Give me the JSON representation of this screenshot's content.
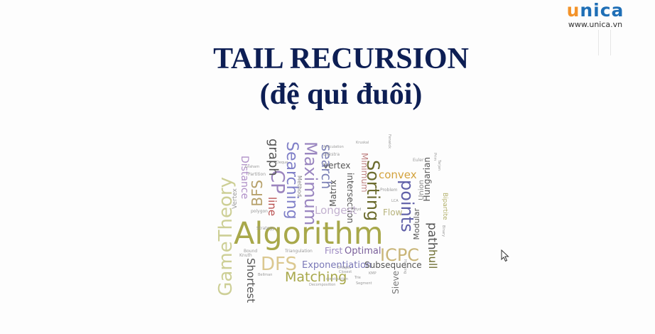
{
  "logo": {
    "brand_u": "u",
    "brand_rest": "nica",
    "url": "www.unica.vn"
  },
  "slide": {
    "title_line1": "TAIL RECURSION",
    "title_line2": "(đệ qui đuôi)"
  },
  "word_cloud": {
    "algorithm": "Algorithm",
    "game_theory": "GameTheory",
    "shortest": "Shortest",
    "distance": "Distance",
    "vertex_small": "Vertex",
    "bfs": "BFS",
    "cp": "CP",
    "line": "line",
    "graph": "graph",
    "searching": "Searching",
    "maximum": "Maximum",
    "search": "search",
    "matrix": "Matrix",
    "vertex": "vertex",
    "intersection": "intersection",
    "minimum": "Minimum",
    "sorting": "Sorting",
    "convex": "convex",
    "hungarian": "Hungarian",
    "points": "points",
    "union": "Union",
    "longest": "Longest",
    "flow": "Flow",
    "modular": "Modular",
    "path": "path",
    "hull": "hull",
    "bipartite": "Bipartite",
    "dfs": "DFS",
    "first": "First",
    "optimal": "Optimal",
    "icpc": "ICPC",
    "exponentiation": "Exponentiation",
    "subsequence": "Subsequence",
    "matching": "Matching",
    "sieve": "Sieve",
    "method": "Method",
    "dijkstra": "Dijkstra",
    "articulation": "Articulation",
    "polygon": "polygon",
    "strategy": "Strategy",
    "triangulation": "Triangulation",
    "bound": "Bound",
    "knuth": "Knuth",
    "construction": "construction",
    "decomposition": "Decomposition",
    "problem": "Problem",
    "euler": "Euler",
    "bridges": "Bridges",
    "closest": "Closest",
    "partition": "Partition",
    "kruskal": "Kruskal",
    "fenwick": "Fenwick",
    "graham": "Graham",
    "prim": "Prim",
    "tarjan": "Tarjan",
    "lca": "LCA",
    "floyd": "Floyd",
    "trie": "Trie",
    "kmp": "KMP",
    "hashing": "Hashing",
    "segment": "Segment",
    "bellman": "Bellman",
    "deque": "Deque",
    "binary": "Binary"
  }
}
